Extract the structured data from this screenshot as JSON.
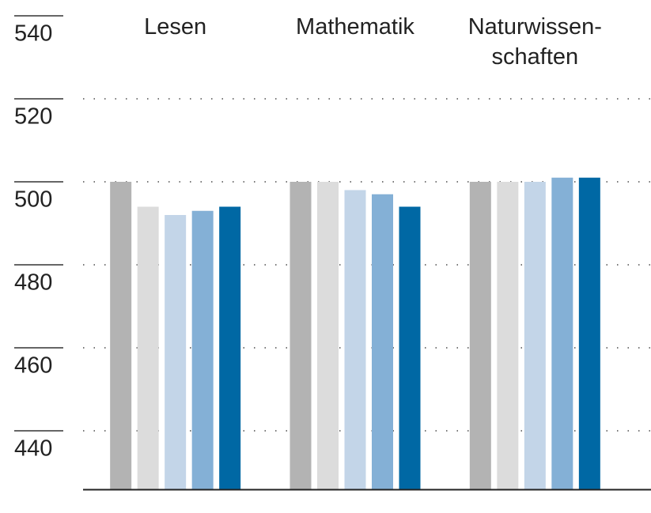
{
  "chart_data": {
    "type": "bar",
    "categories": [
      "Lesen",
      "Mathematik",
      "Naturwissen-\nschaften"
    ],
    "series": [
      {
        "color": "#b3b3b3",
        "values": [
          500,
          500,
          500
        ]
      },
      {
        "color": "#dcdcdc",
        "values": [
          494,
          500,
          500
        ]
      },
      {
        "color": "#c3d5e8",
        "values": [
          492,
          498,
          500
        ]
      },
      {
        "color": "#84b0d6",
        "values": [
          493,
          497,
          501
        ]
      },
      {
        "color": "#0068a4",
        "values": [
          494,
          494,
          501
        ]
      }
    ],
    "ylim": [
      426,
      540
    ],
    "yticks": [
      440,
      460,
      480,
      500,
      520,
      540
    ],
    "grid": true
  }
}
